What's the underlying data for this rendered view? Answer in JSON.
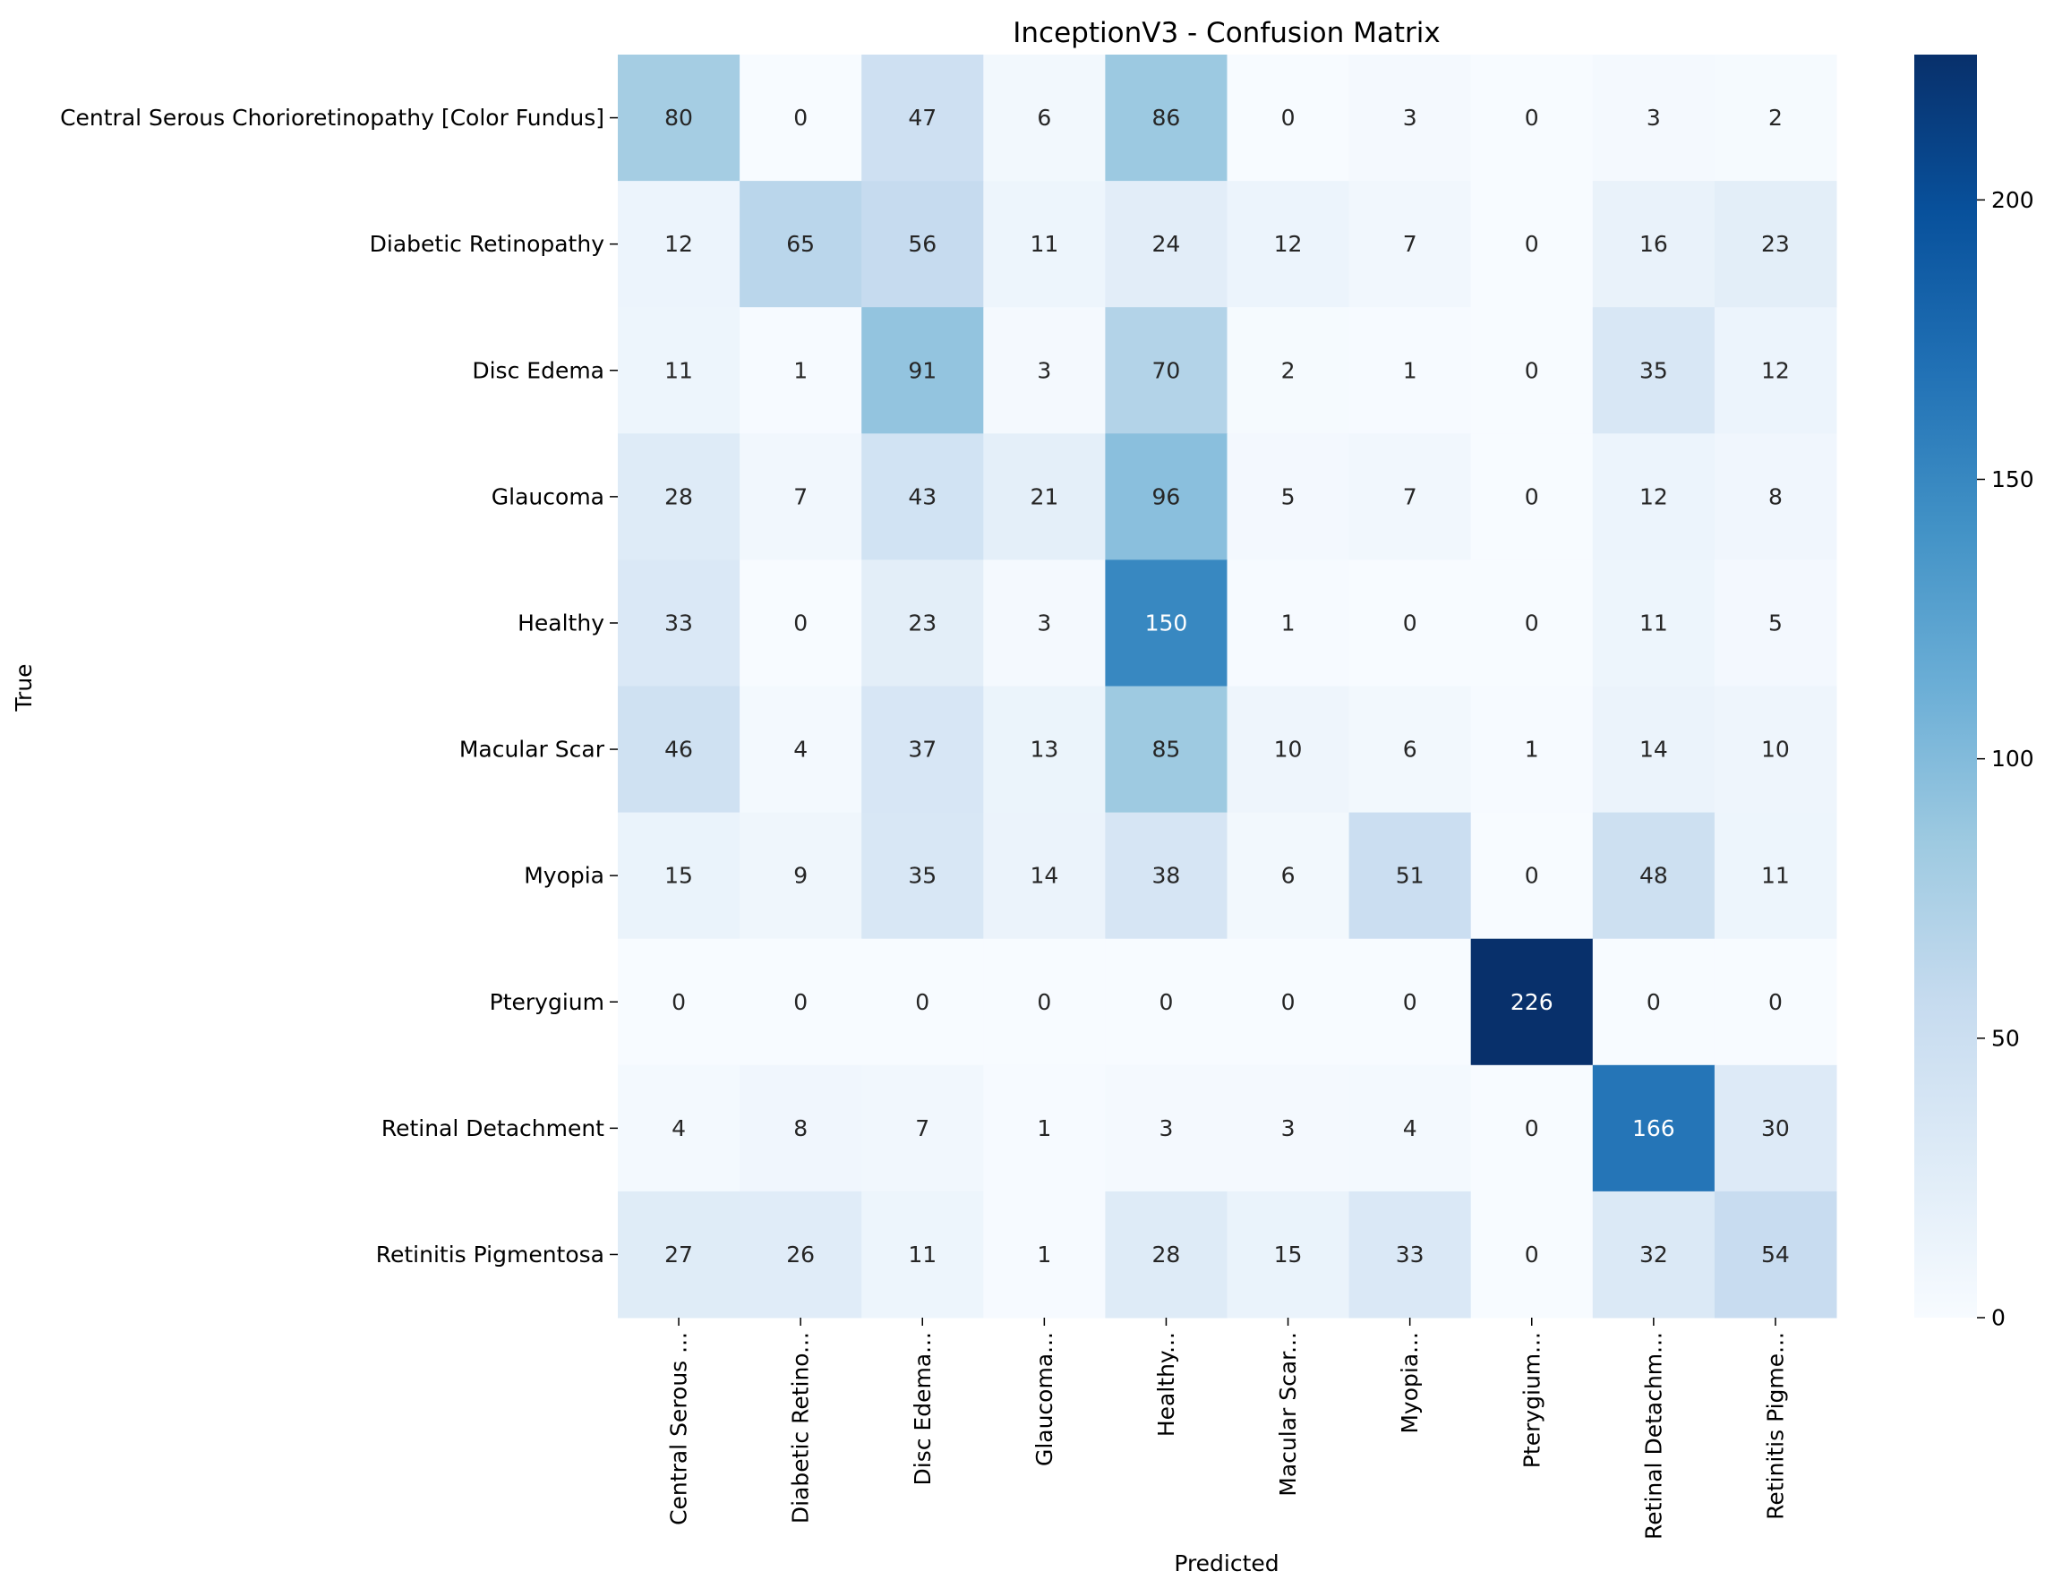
{
  "chart_data": {
    "type": "heatmap",
    "title": "InceptionV3 - Confusion Matrix",
    "xlabel": "Predicted",
    "ylabel": "True",
    "row_labels": [
      "Central Serous Chorioretinopathy [Color Fundus]",
      "Diabetic Retinopathy",
      "Disc Edema",
      "Glaucoma",
      "Healthy",
      "Macular Scar",
      "Myopia",
      "Pterygium",
      "Retinal Detachment",
      "Retinitis Pigmentosa"
    ],
    "col_labels": [
      "Central Serous ...",
      "Diabetic Retino...",
      "Disc Edema...",
      "Glaucoma...",
      "Healthy...",
      "Macular Scar...",
      "Myopia...",
      "Pterygium...",
      "Retinal Detachm...",
      "Retinitis Pigme..."
    ],
    "values": [
      [
        80,
        0,
        47,
        6,
        86,
        0,
        3,
        0,
        3,
        2
      ],
      [
        12,
        65,
        56,
        11,
        24,
        12,
        7,
        0,
        16,
        23
      ],
      [
        11,
        1,
        91,
        3,
        70,
        2,
        1,
        0,
        35,
        12
      ],
      [
        28,
        7,
        43,
        21,
        96,
        5,
        7,
        0,
        12,
        8
      ],
      [
        33,
        0,
        23,
        3,
        150,
        1,
        0,
        0,
        11,
        5
      ],
      [
        46,
        4,
        37,
        13,
        85,
        10,
        6,
        1,
        14,
        10
      ],
      [
        15,
        9,
        35,
        14,
        38,
        6,
        51,
        0,
        48,
        11
      ],
      [
        0,
        0,
        0,
        0,
        0,
        0,
        0,
        226,
        0,
        0
      ],
      [
        4,
        8,
        7,
        1,
        3,
        3,
        4,
        0,
        166,
        30
      ],
      [
        27,
        26,
        11,
        1,
        28,
        15,
        33,
        0,
        32,
        54
      ]
    ],
    "colormap": "Blues",
    "vmin": 0,
    "vmax": 226,
    "colorbar_ticks": [
      0,
      50,
      100,
      150,
      200
    ]
  }
}
